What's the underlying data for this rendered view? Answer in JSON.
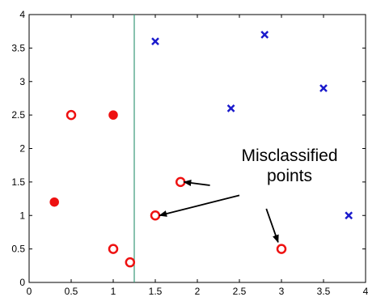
{
  "chart_data": {
    "type": "scatter",
    "xlim": [
      0,
      4
    ],
    "ylim": [
      0,
      4
    ],
    "grid": false,
    "x_ticks": [
      0,
      0.5,
      1,
      1.5,
      2,
      2.5,
      3,
      3.5,
      4
    ],
    "y_ticks": [
      0,
      0.5,
      1,
      1.5,
      2,
      2.5,
      3,
      3.5,
      4
    ],
    "x_tick_labels": [
      "0",
      "0.5",
      "1",
      "1.5",
      "2",
      "2.5",
      "3",
      "3.5",
      "4"
    ],
    "y_tick_labels": [
      "0",
      "0.5",
      "1",
      "1.5",
      "2",
      "2.5",
      "3",
      "3.5",
      "4"
    ],
    "decision_boundary": {
      "x": 1.25,
      "color": "#3a9a7a"
    },
    "series": [
      {
        "marker": "circle-open",
        "color": "#ee1111",
        "points": [
          {
            "x": 0.5,
            "y": 2.5
          },
          {
            "x": 1.0,
            "y": 0.5
          },
          {
            "x": 1.2,
            "y": 0.3
          },
          {
            "x": 1.5,
            "y": 1.0
          },
          {
            "x": 1.8,
            "y": 1.5
          },
          {
            "x": 3.0,
            "y": 0.5
          }
        ]
      },
      {
        "marker": "circle-filled",
        "color": "#ee1111",
        "points": [
          {
            "x": 0.3,
            "y": 1.2
          },
          {
            "x": 1.0,
            "y": 2.5
          }
        ]
      },
      {
        "marker": "x",
        "color": "#1a1acc",
        "points": [
          {
            "x": 1.5,
            "y": 3.6
          },
          {
            "x": 2.4,
            "y": 2.6
          },
          {
            "x": 2.8,
            "y": 3.7
          },
          {
            "x": 3.5,
            "y": 2.9
          },
          {
            "x": 3.8,
            "y": 1.0
          }
        ]
      }
    ],
    "annotation": {
      "lines": [
        "Misclassified",
        "points"
      ],
      "arrows": [
        {
          "from": [
            2.15,
            1.45
          ],
          "to": [
            1.84,
            1.5
          ]
        },
        {
          "from": [
            2.5,
            1.3
          ],
          "to": [
            1.55,
            1.0
          ]
        },
        {
          "from": [
            2.82,
            1.1
          ],
          "to": [
            2.96,
            0.6
          ]
        }
      ]
    }
  }
}
